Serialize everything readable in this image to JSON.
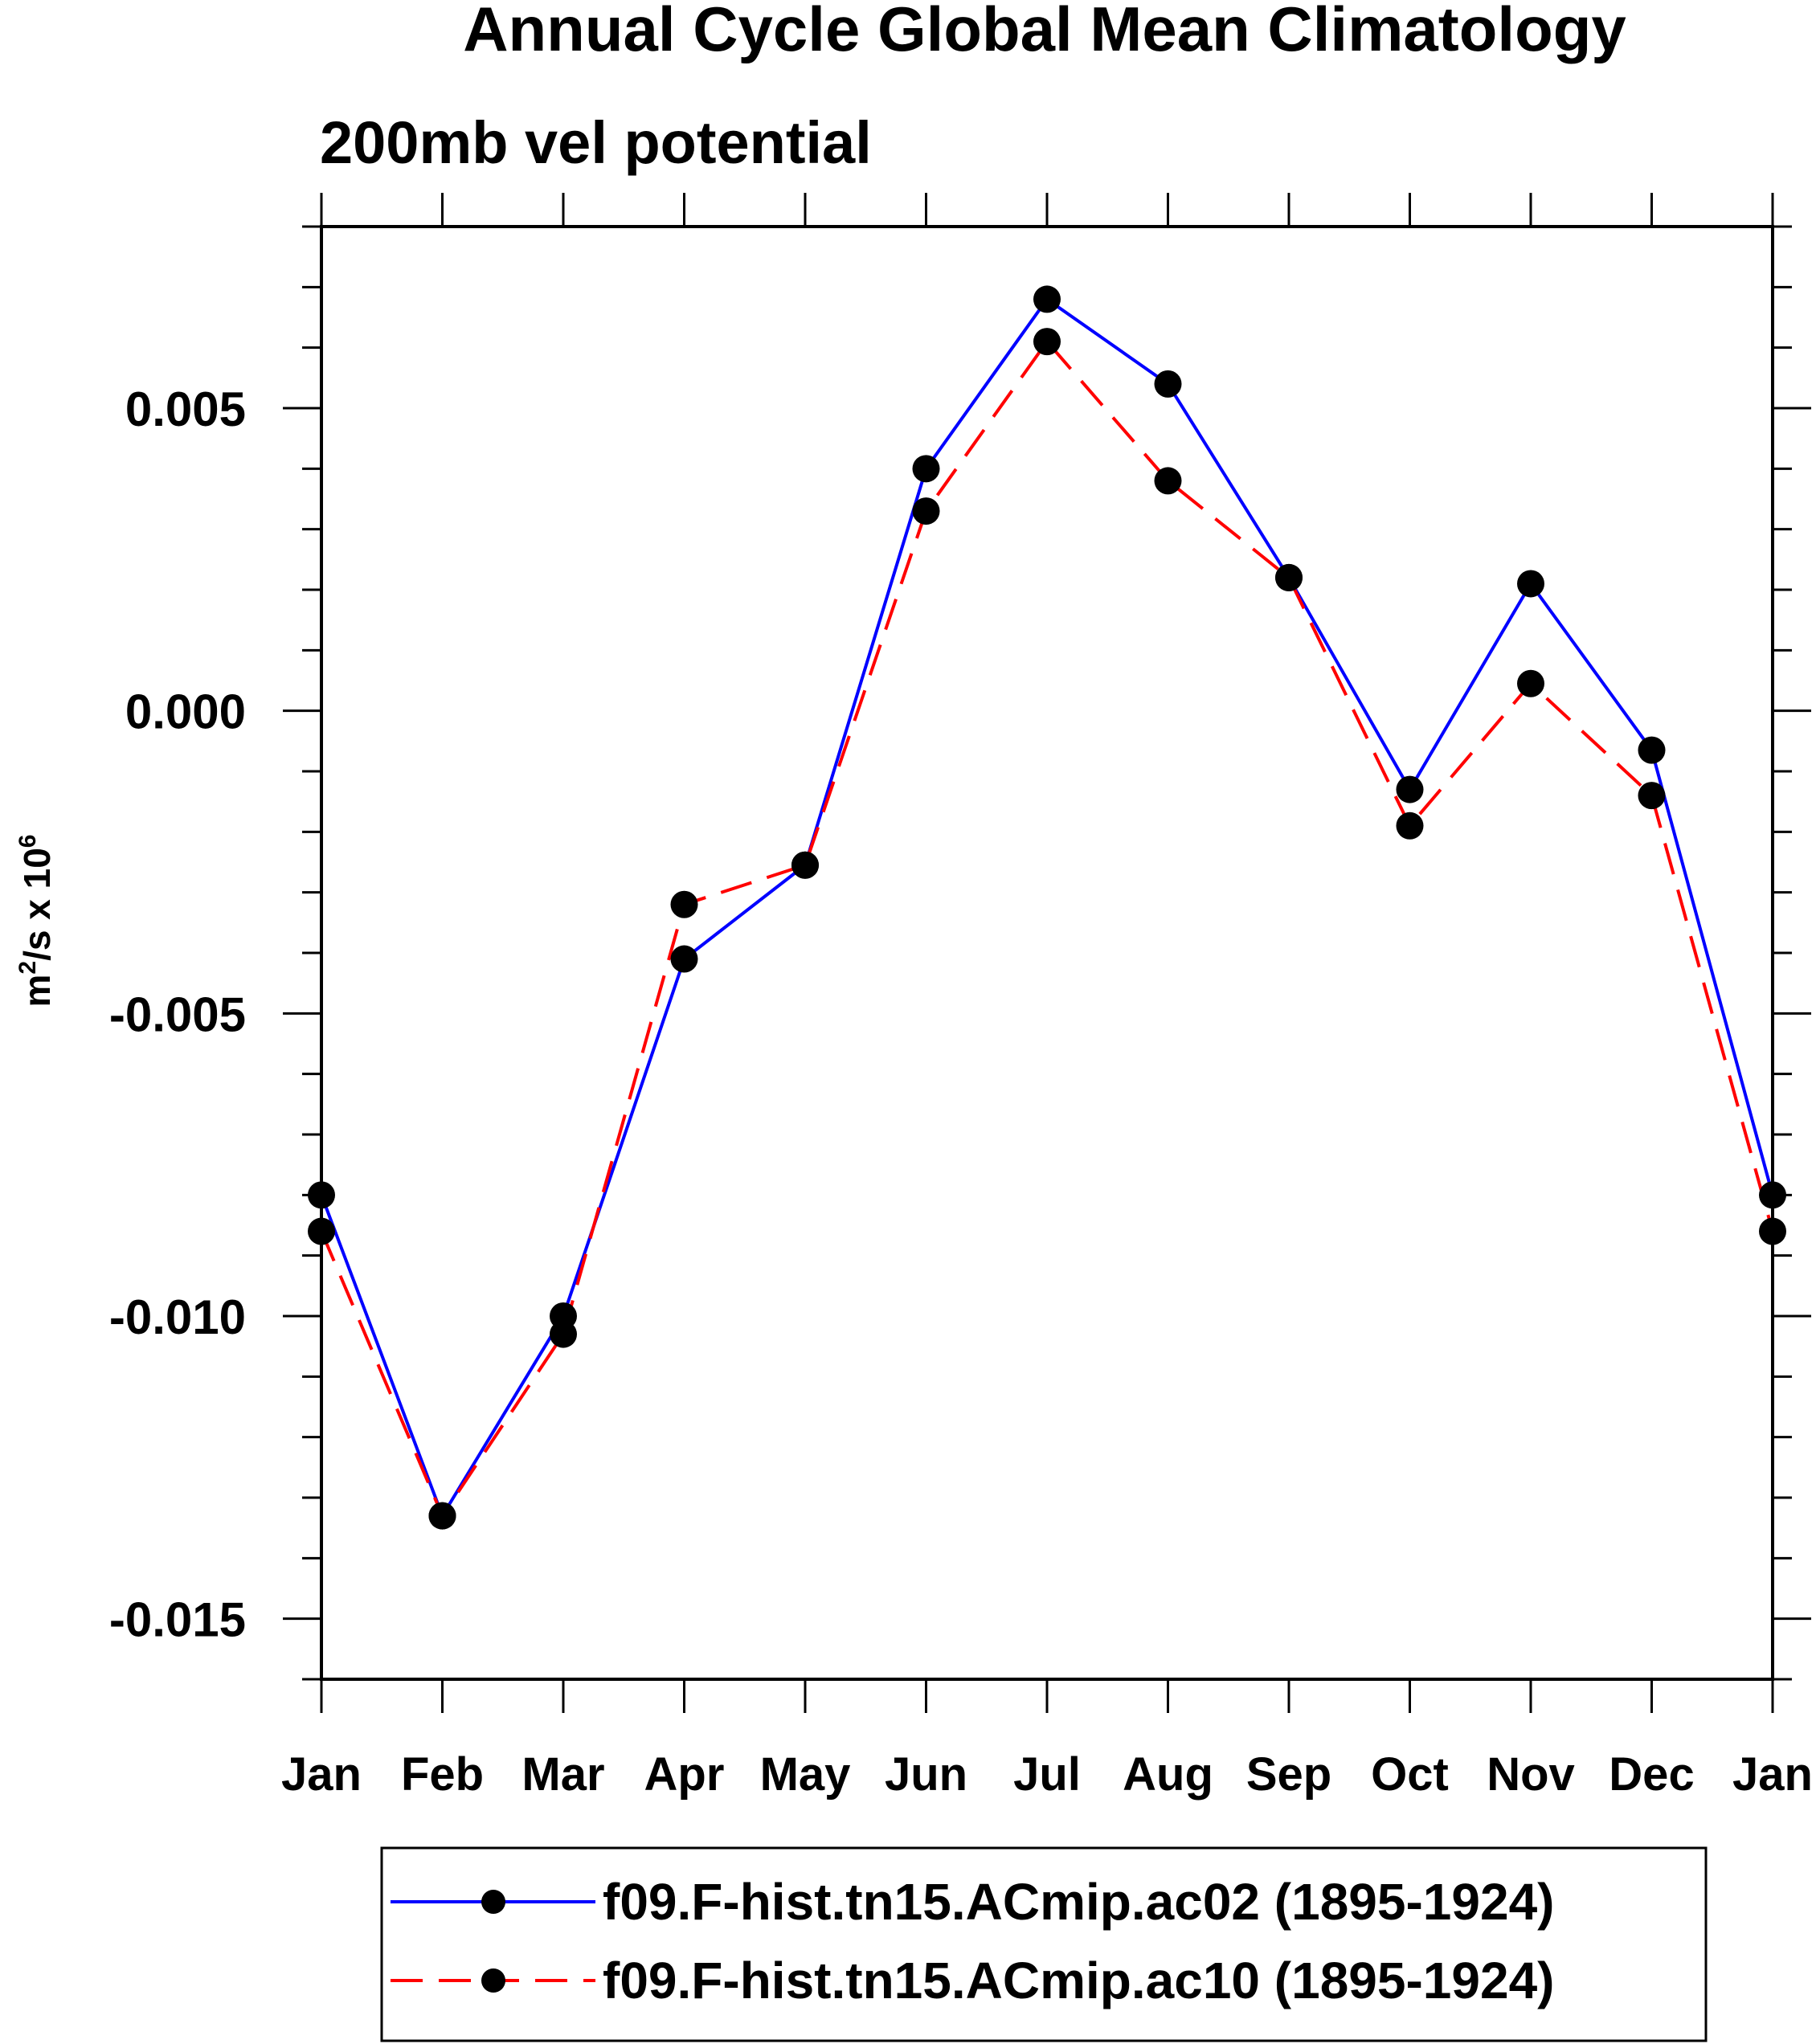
{
  "chart_data": {
    "type": "line",
    "title": "Annual Cycle Global Mean Climatology",
    "subtitle": "200mb vel potential",
    "xlabel": "",
    "ylabel": "m2/s x 106",
    "ylabel_parts": {
      "base": "m",
      "sup1": "2",
      "mid": "/s x 10",
      "sup2": "6"
    },
    "categories": [
      "Jan",
      "Feb",
      "Mar",
      "Apr",
      "May",
      "Jun",
      "Jul",
      "Aug",
      "Sep",
      "Oct",
      "Nov",
      "Dec",
      "Jan"
    ],
    "yticks": [
      0.005,
      0.0,
      -0.005,
      -0.01,
      -0.015
    ],
    "ytick_labels": [
      "0.005",
      "0.000",
      "-0.005",
      "-0.010",
      "-0.015"
    ],
    "ylim": [
      -0.016,
      0.008
    ],
    "grid": false,
    "legend_position": "bottom",
    "series": [
      {
        "name": "f09.F-hist.tn15.ACmip.ac02 (1895-1924)",
        "color": "#0000ff",
        "style": "solid",
        "marker": "dot",
        "values": [
          -0.008,
          -0.0133,
          -0.01,
          -0.0041,
          -0.00255,
          0.004,
          0.0068,
          0.0054,
          0.0022,
          -0.0013,
          0.0021,
          -0.00065,
          -0.008
        ]
      },
      {
        "name": "f09.F-hist.tn15.ACmip.ac10 (1895-1924)",
        "color": "#ff0000",
        "style": "dashed",
        "marker": "dot",
        "values": [
          -0.0086,
          -0.0133,
          -0.0103,
          -0.0032,
          -0.00255,
          0.0033,
          0.0061,
          0.0038,
          0.0022,
          -0.0019,
          0.00045,
          -0.0014,
          -0.0086
        ]
      }
    ]
  }
}
